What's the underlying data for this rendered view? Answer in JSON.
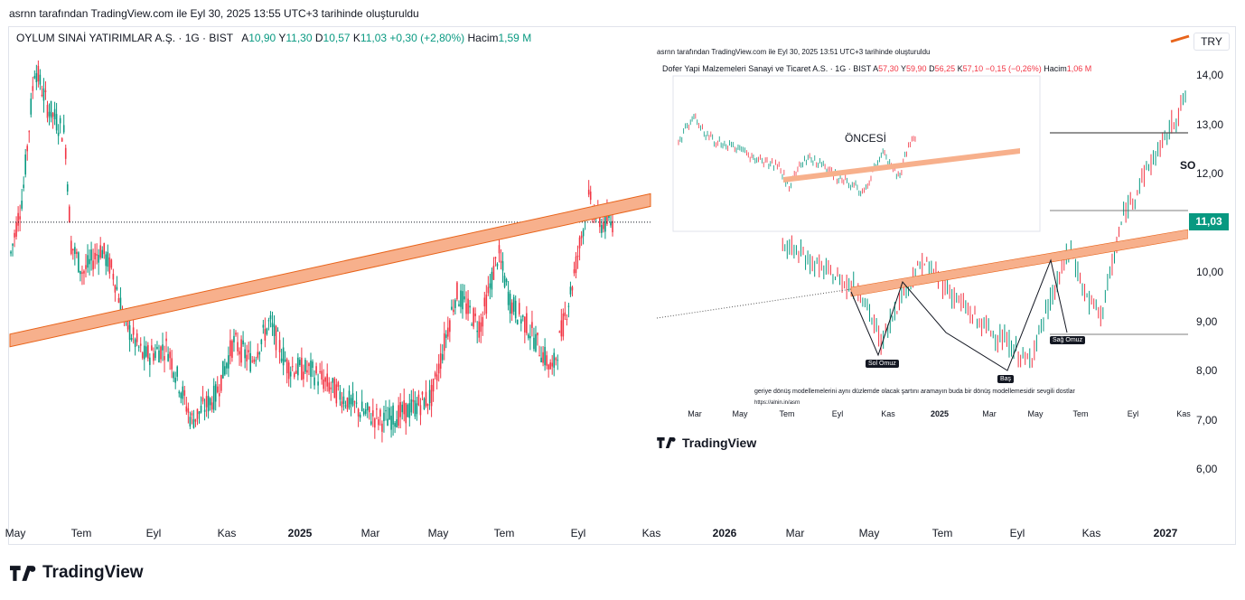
{
  "caption": "asrnn tarafından TradingView.com ile Eyl 30, 2025 13:55 UTC+3 tarihinde oluşturuldu",
  "legend": {
    "symbol": "OYLUM SINAİ YATIRIMLAR A.Ş. · 1G · BIST",
    "open_label": "A",
    "open": "10,90",
    "high_label": "Y",
    "high": "11,30",
    "low_label": "D",
    "low": "10,57",
    "close_label": "K",
    "close": "11,03",
    "change": "+0,30 (+2,80%)",
    "volume_label": "Hacim",
    "volume": "1,59 M"
  },
  "currency": "TRY",
  "last_price": "11,03",
  "brand": "TradingView",
  "colors": {
    "up": "#089981",
    "down": "#f23645",
    "trend_band": "#f7b08c",
    "trend_line": "#e8641b"
  },
  "chart_data": {
    "type": "candlestick",
    "yaxis": {
      "ticks": [
        "14,00",
        "13,00",
        "12,00",
        "11,00",
        "10,00",
        "9,00",
        "8,00",
        "7,00",
        "6,00"
      ],
      "range": [
        5.5,
        14.6
      ]
    },
    "xaxis": {
      "ticks": [
        {
          "label": "May",
          "bold": false
        },
        {
          "label": "Tem",
          "bold": false
        },
        {
          "label": "Eyl",
          "bold": false
        },
        {
          "label": "Kas",
          "bold": false
        },
        {
          "label": "2025",
          "bold": true
        },
        {
          "label": "Mar",
          "bold": false
        },
        {
          "label": "May",
          "bold": false
        },
        {
          "label": "Tem",
          "bold": false
        },
        {
          "label": "Eyl",
          "bold": false
        },
        {
          "label": "Kas",
          "bold": false
        },
        {
          "label": "2026",
          "bold": true
        },
        {
          "label": "Mar",
          "bold": false
        },
        {
          "label": "May",
          "bold": false
        },
        {
          "label": "Tem",
          "bold": false
        },
        {
          "label": "Eyl",
          "bold": false
        },
        {
          "label": "Kas",
          "bold": false
        },
        {
          "label": "2027",
          "bold": true
        }
      ]
    },
    "price_path": [
      {
        "t": 0.0,
        "p": 10.4
      },
      {
        "t": 0.02,
        "p": 11.6
      },
      {
        "t": 0.04,
        "p": 14.2
      },
      {
        "t": 0.06,
        "p": 13.4
      },
      {
        "t": 0.09,
        "p": 12.8
      },
      {
        "t": 0.1,
        "p": 10.6
      },
      {
        "t": 0.12,
        "p": 10.0
      },
      {
        "t": 0.15,
        "p": 10.5
      },
      {
        "t": 0.17,
        "p": 10.0
      },
      {
        "t": 0.19,
        "p": 9.0
      },
      {
        "t": 0.22,
        "p": 8.3
      },
      {
        "t": 0.26,
        "p": 8.5
      },
      {
        "t": 0.3,
        "p": 7.0
      },
      {
        "t": 0.34,
        "p": 7.5
      },
      {
        "t": 0.37,
        "p": 8.6
      },
      {
        "t": 0.4,
        "p": 8.2
      },
      {
        "t": 0.43,
        "p": 9.0
      },
      {
        "t": 0.46,
        "p": 8.1
      },
      {
        "t": 0.5,
        "p": 8.0
      },
      {
        "t": 0.54,
        "p": 7.6
      },
      {
        "t": 0.58,
        "p": 7.2
      },
      {
        "t": 0.62,
        "p": 7.0
      },
      {
        "t": 0.66,
        "p": 7.2
      },
      {
        "t": 0.7,
        "p": 7.5
      },
      {
        "t": 0.74,
        "p": 9.6
      },
      {
        "t": 0.78,
        "p": 8.9
      },
      {
        "t": 0.81,
        "p": 10.4
      },
      {
        "t": 0.83,
        "p": 9.4
      },
      {
        "t": 0.86,
        "p": 8.9
      },
      {
        "t": 0.9,
        "p": 8.0
      },
      {
        "t": 0.93,
        "p": 9.6
      },
      {
        "t": 0.96,
        "p": 11.5
      },
      {
        "t": 0.98,
        "p": 11.0
      },
      {
        "t": 1.0,
        "p": 11.03
      }
    ],
    "trendline": {
      "start": {
        "x_label": "May",
        "price": 8.5
      },
      "end": {
        "x_label": "Kas",
        "price": 11.35
      }
    },
    "horizontal_line": {
      "price": 11.03,
      "style": "dotted"
    }
  },
  "inset": {
    "caption": "asrnn tarafından TradingView.com ile Eyl 30, 2025 13:51 UTC+3 tarihinde oluşturuldu",
    "legend": {
      "symbol": "Dofer Yapi Malzemeleri Sanayi ve Ticaret A.S. · 1G · BIST",
      "open_label": "A",
      "open": "57,30",
      "high_label": "Y",
      "high": "59,90",
      "low_label": "D",
      "low": "56,25",
      "close_label": "K",
      "close": "57,10",
      "change": "−0,15 (−0,26%)",
      "volume_label": "Hacim",
      "volume": "1,06 M"
    },
    "before_label": "ÖNCESİ",
    "right_cut_label": "SO",
    "annotations": {
      "left_shoulder": "Sol Omuz",
      "head": "Baş",
      "right_shoulder": "Sağ Omuz"
    },
    "note": "geriye dönüş modellemelerini aynı düzlemde olacak şartını aramayın buda bir dönüş modellemesidir sevgili dostlar",
    "note2": "https://alnin.in/asrn",
    "xaxis": [
      "Mar",
      "May",
      "Tem",
      "Eyl",
      "Kas",
      "2025",
      "Mar",
      "May",
      "Tem",
      "Eyl",
      "Kas"
    ],
    "price_path": [
      {
        "t": 0.0,
        "p": 0.55
      },
      {
        "t": 0.03,
        "p": 0.7
      },
      {
        "t": 0.06,
        "p": 0.82
      },
      {
        "t": 0.1,
        "p": 0.62
      },
      {
        "t": 0.15,
        "p": 0.55
      },
      {
        "t": 0.2,
        "p": 0.5
      },
      {
        "t": 0.27,
        "p": 0.42
      },
      {
        "t": 0.32,
        "p": 0.36
      },
      {
        "t": 0.38,
        "p": 0.3
      },
      {
        "t": 0.42,
        "p": 0.12
      },
      {
        "t": 0.46,
        "p": 0.3
      },
      {
        "t": 0.5,
        "p": 0.4
      },
      {
        "t": 0.55,
        "p": 0.3
      },
      {
        "t": 0.6,
        "p": 0.2
      },
      {
        "t": 0.66,
        "p": 0.12
      },
      {
        "t": 0.7,
        "p": 0.05
      },
      {
        "t": 0.74,
        "p": 0.25
      },
      {
        "t": 0.78,
        "p": 0.45
      },
      {
        "t": 0.81,
        "p": 0.28
      },
      {
        "t": 0.84,
        "p": 0.22
      },
      {
        "t": 0.88,
        "p": 0.55
      },
      {
        "t": 0.92,
        "p": 0.7
      },
      {
        "t": 0.96,
        "p": 0.82
      },
      {
        "t": 1.0,
        "p": 0.97
      }
    ]
  }
}
